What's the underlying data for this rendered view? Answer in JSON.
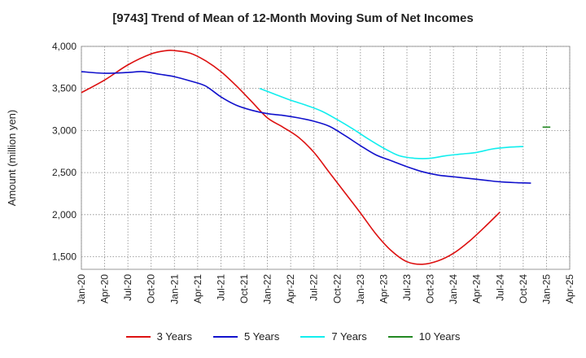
{
  "chart_data": {
    "type": "line",
    "title": "[9743]  Trend of Mean of 12-Month Moving Sum of Net Incomes",
    "xlabel": "",
    "ylabel": "Amount (million yen)",
    "ylim": [
      1350,
      4000
    ],
    "y_ticks": [
      1500,
      2000,
      2500,
      3000,
      3500,
      4000
    ],
    "y_tick_labels": [
      "1,500",
      "2,000",
      "2,500",
      "3,000",
      "3,500",
      "4,000"
    ],
    "x_start": "Jan-20",
    "x_month_range": [
      0,
      63
    ],
    "x_tick_months": [
      0,
      3,
      6,
      9,
      12,
      15,
      18,
      21,
      24,
      27,
      30,
      33,
      36,
      39,
      42,
      45,
      48,
      51,
      54,
      57,
      60,
      63
    ],
    "x_tick_labels": [
      "Jan-20",
      "Apr-20",
      "Jul-20",
      "Oct-20",
      "Jan-21",
      "Apr-21",
      "Jul-21",
      "Oct-21",
      "Jan-22",
      "Apr-22",
      "Jul-22",
      "Oct-22",
      "Jan-23",
      "Apr-23",
      "Jul-23",
      "Oct-23",
      "Jan-24",
      "Apr-24",
      "Jul-24",
      "Oct-24",
      "Jan-25",
      "Apr-25"
    ],
    "grid": true,
    "legend_position": "bottom",
    "series": [
      {
        "name": "3 Years",
        "color": "#dd1111",
        "x": [
          0,
          3,
          6,
          9,
          11,
          12,
          14,
          16,
          18,
          20,
          22,
          24,
          26,
          28,
          30,
          32,
          34,
          36,
          38,
          40,
          42,
          44,
          46,
          48,
          50,
          52,
          54,
          56,
          58,
          60
        ],
        "values": [
          3450,
          3600,
          3780,
          3910,
          3950,
          3950,
          3920,
          3830,
          3700,
          3530,
          3340,
          3150,
          3040,
          2920,
          2740,
          2500,
          2260,
          2020,
          1770,
          1570,
          1440,
          1410,
          1450,
          1540,
          1680,
          1850,
          2030,
          null,
          null,
          null
        ]
      },
      {
        "name": "5 Years",
        "color": "#1111cc",
        "x": [
          0,
          3,
          6,
          8,
          10,
          12,
          14,
          16,
          18,
          20,
          22,
          24,
          26,
          28,
          30,
          32,
          34,
          36,
          38,
          40,
          42,
          44,
          46,
          48,
          50,
          52,
          54,
          56,
          58,
          60
        ],
        "values": [
          3700,
          3680,
          3690,
          3700,
          3670,
          3640,
          3590,
          3530,
          3400,
          3300,
          3240,
          3200,
          3180,
          3150,
          3110,
          3050,
          2940,
          2820,
          2710,
          2640,
          2570,
          2510,
          2470,
          2450,
          2430,
          2410,
          2390,
          2380,
          2375,
          null
        ]
      },
      {
        "name": "7 Years",
        "color": "#11eeee",
        "x": [
          23,
          25,
          27,
          29,
          31,
          33,
          35,
          37,
          39,
          41,
          43,
          45,
          47,
          49,
          51,
          53,
          55,
          57,
          59,
          60
        ],
        "values": [
          3500,
          3430,
          3360,
          3300,
          3230,
          3130,
          3020,
          2900,
          2790,
          2700,
          2670,
          2670,
          2700,
          2720,
          2740,
          2780,
          2800,
          2810,
          null,
          null
        ]
      },
      {
        "name": "10 Years",
        "color": "#228822",
        "x": [
          59.5,
          60.5
        ],
        "values": [
          3040,
          3040
        ]
      }
    ]
  }
}
